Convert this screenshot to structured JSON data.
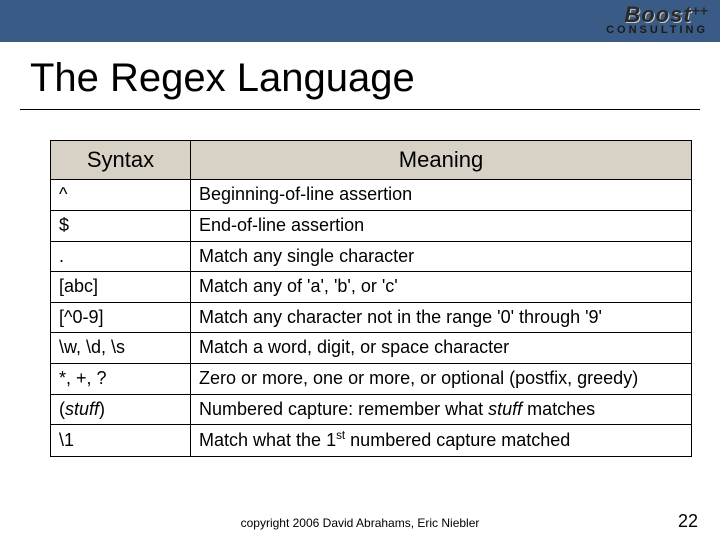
{
  "logo": {
    "main": "Boost",
    "suffix": "++",
    "sub": "CONSULTING"
  },
  "title": "The Regex Language",
  "table": {
    "headers": [
      "Syntax",
      "Meaning"
    ],
    "rows": [
      {
        "syntax": "^",
        "meaning": "Beginning-of-line assertion"
      },
      {
        "syntax": "$",
        "meaning": "End-of-line assertion"
      },
      {
        "syntax": ".",
        "meaning": "Match any single character"
      },
      {
        "syntax": "[abc]",
        "meaning": "Match any of 'a', 'b', or 'c'"
      },
      {
        "syntax": "[^0-9]",
        "meaning": "Match any character not in the range '0' through '9'"
      },
      {
        "syntax": "\\w, \\d, \\s",
        "meaning": "Match a word, digit, or space character"
      },
      {
        "syntax": "*, +, ?",
        "meaning": "Zero or more, one or more, or optional (postfix, greedy)"
      }
    ],
    "row7": {
      "syntax_pre": "(",
      "syntax_em": "stuff",
      "syntax_post": ")",
      "meaning_pre": "Numbered capture: remember what ",
      "meaning_em": "stuff",
      "meaning_post": " matches"
    },
    "row8": {
      "syntax": "\\1",
      "meaning_pre": "Match what the 1",
      "meaning_sup": "st",
      "meaning_post": " numbered capture matched"
    }
  },
  "footer": "copyright 2006 David Abrahams, Eric Niebler",
  "slidenum": "22",
  "colors": {
    "topbar": "#3b5b87",
    "header_bg": "#d7d2c5",
    "border": "#000000",
    "text": "#000000",
    "background": "#ffffff"
  },
  "typography": {
    "title_fontsize": 40,
    "th_fontsize": 22,
    "td_fontsize": 18,
    "footer_fontsize": 12,
    "slidenum_fontsize": 18
  }
}
